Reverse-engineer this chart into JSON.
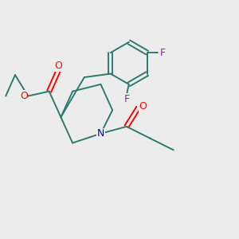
{
  "background_color": "#ececec",
  "bond_color": "#2d7a6e",
  "atom_colors": {
    "O": "#ff0000",
    "N": "#0000cc",
    "F": "#cc00cc",
    "C": "#2d7a6e"
  },
  "figsize": [
    3.0,
    3.0
  ],
  "dpi": 100
}
